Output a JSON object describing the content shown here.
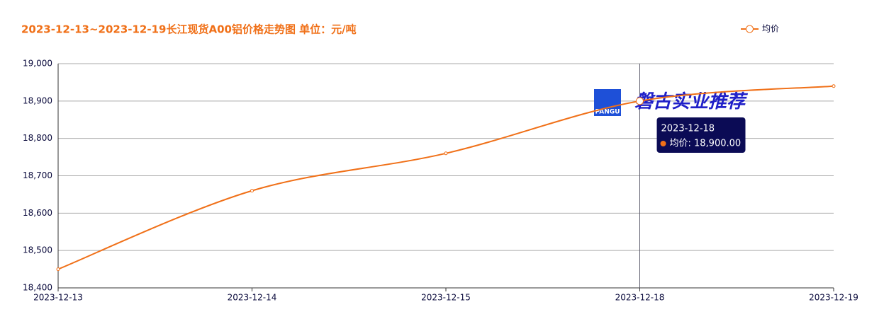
{
  "chart_data": {
    "type": "line",
    "title": "2023-12-13~2023-12-19长江现货A00铝价格走势图 单位：元/吨",
    "categories": [
      "2023-12-13",
      "2023-12-14",
      "2023-12-15",
      "2023-12-18",
      "2023-12-19"
    ],
    "series": [
      {
        "name": "均价",
        "color": "#f07018",
        "values": [
          18450,
          18660,
          18760,
          18900,
          18940
        ]
      }
    ],
    "ylim": [
      18400,
      19000
    ],
    "yticks": [
      {
        "value": 18400,
        "label": "18,400"
      },
      {
        "value": 18500,
        "label": "18,500"
      },
      {
        "value": 18600,
        "label": "18,600"
      },
      {
        "value": 18700,
        "label": "18,700"
      },
      {
        "value": 18800,
        "label": "18,800"
      },
      {
        "value": 18900,
        "label": "18,900"
      },
      {
        "value": 19000,
        "label": "19,000"
      }
    ],
    "grid": true,
    "legend": "top-right",
    "tooltip": {
      "title": "2023-12-18",
      "text": "均价: 18,900.00"
    },
    "watermark": {
      "logo": "PANGU",
      "text": "磐古实业推荐"
    }
  }
}
